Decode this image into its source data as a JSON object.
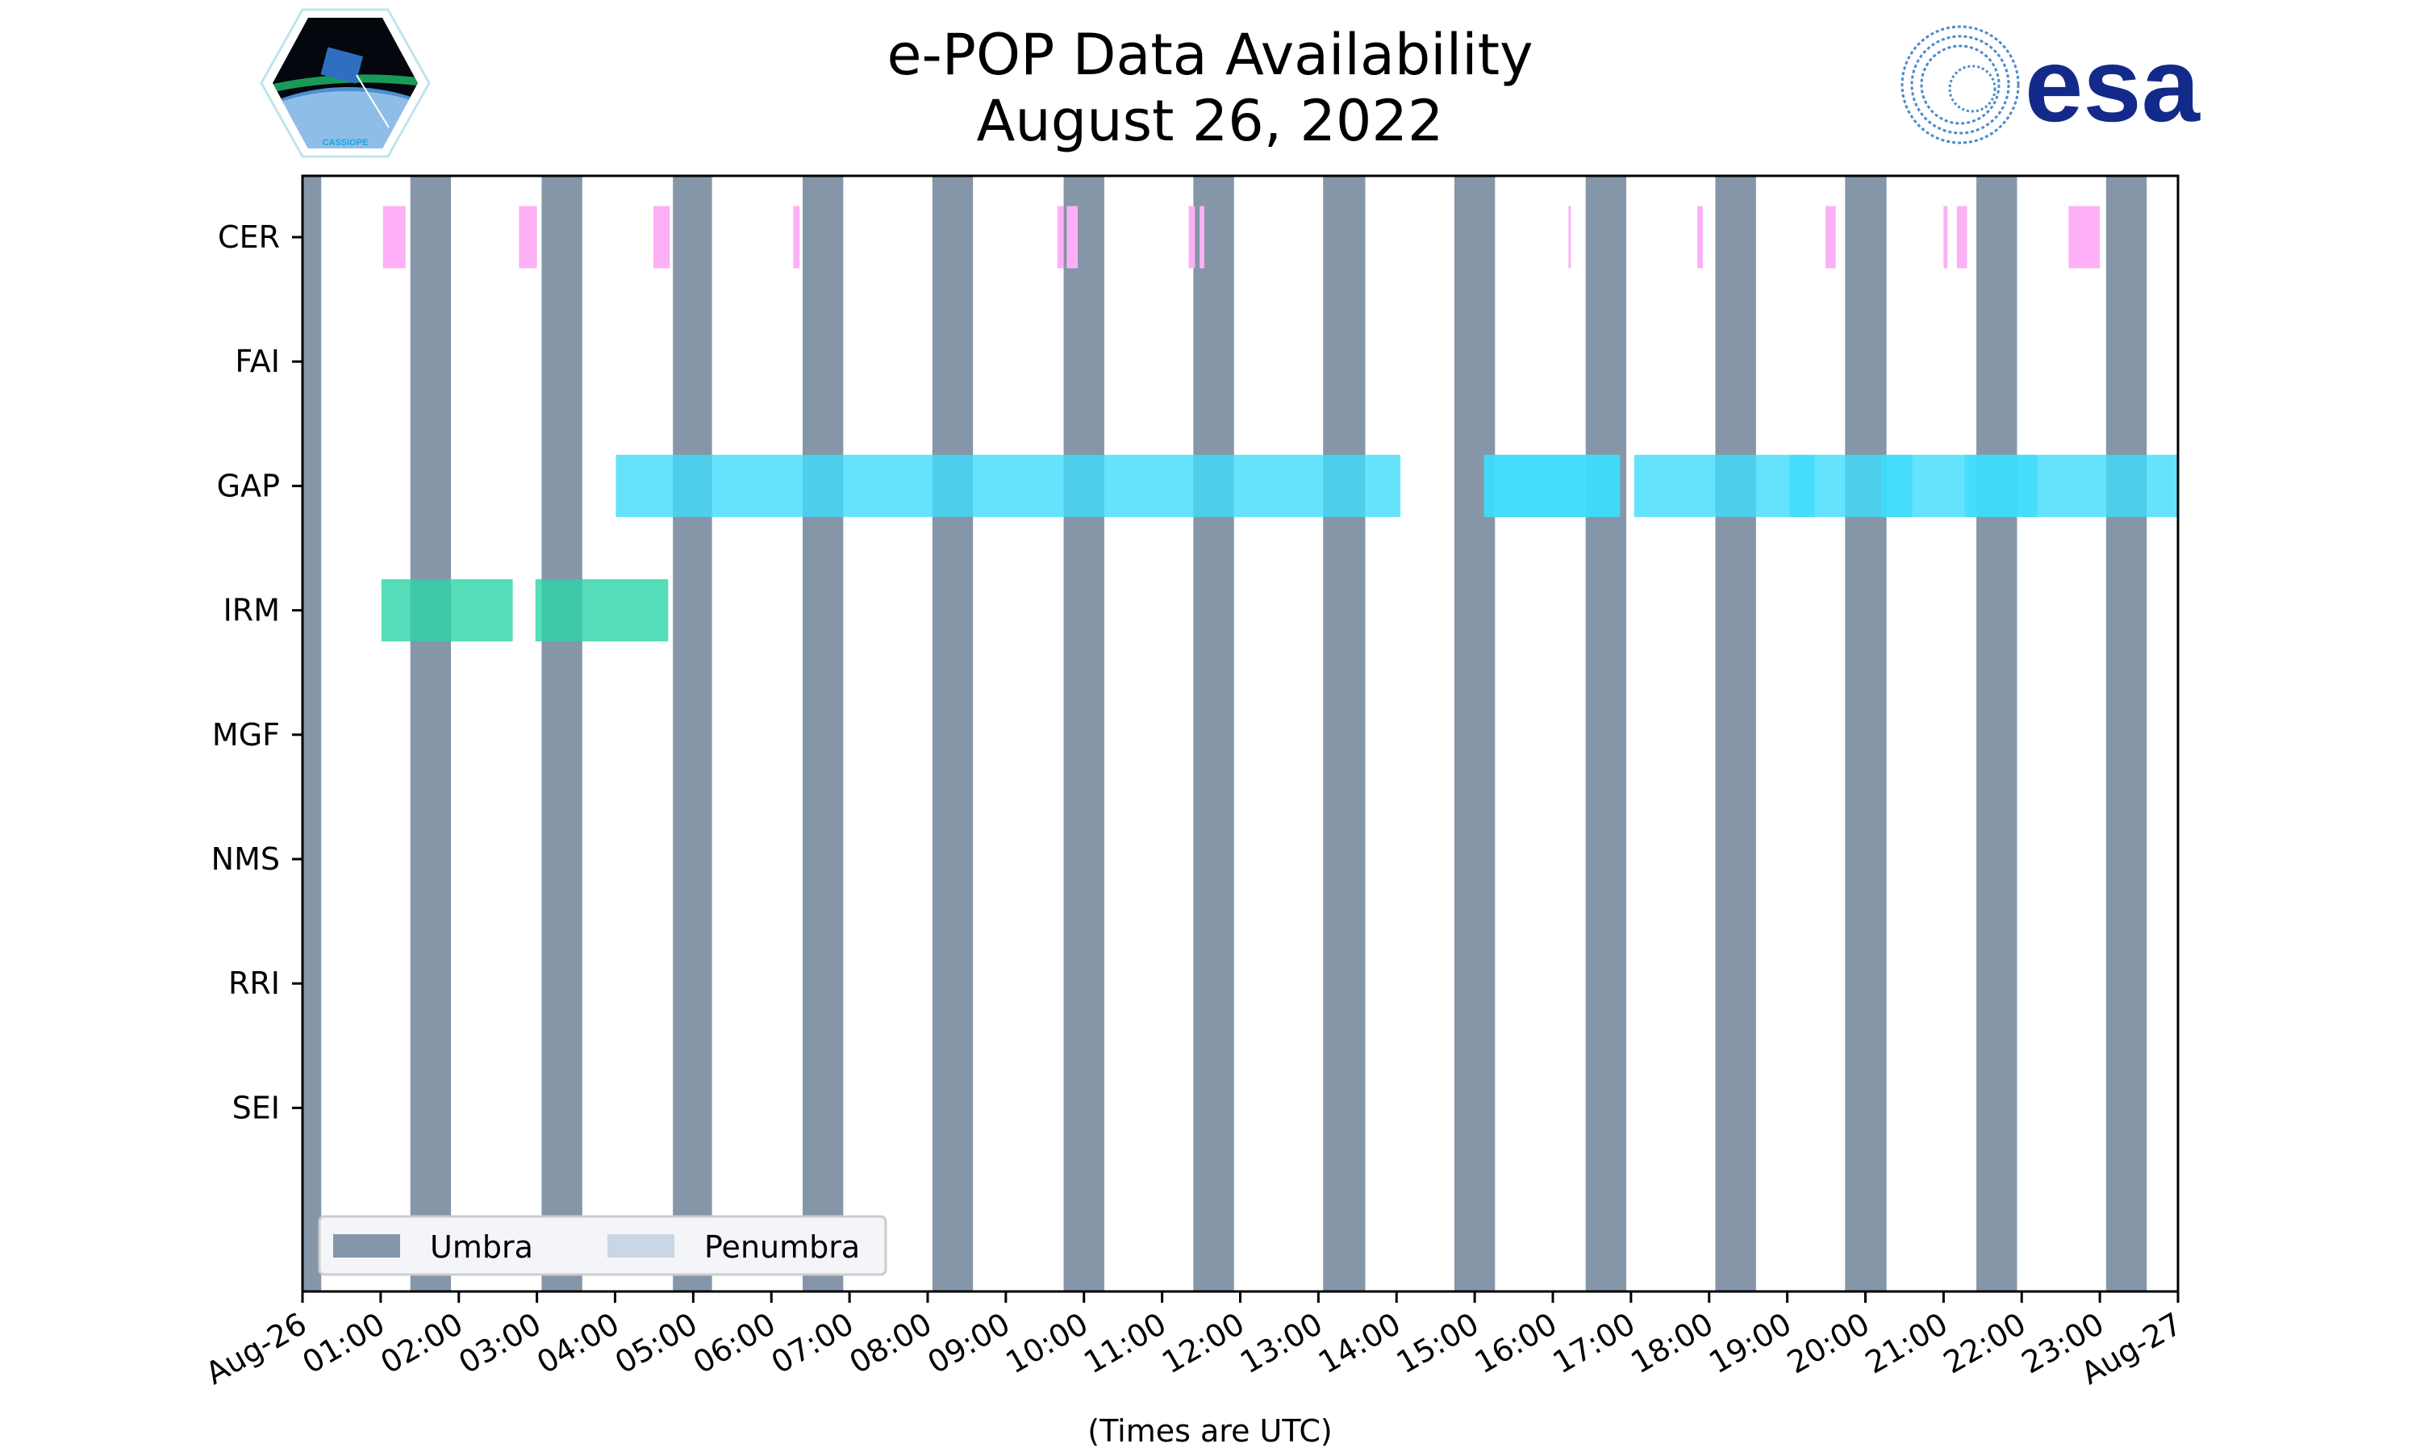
{
  "chart_data": {
    "type": "timeline",
    "title": "e-POP Data Availability",
    "subtitle": "August 26, 2022",
    "xlabel": "(Times are UTC)",
    "ylabel": "",
    "xlim_hours": [
      0,
      24
    ],
    "x_tick_labels": [
      "Aug-26",
      "01:00",
      "02:00",
      "03:00",
      "04:00",
      "05:00",
      "06:00",
      "07:00",
      "08:00",
      "09:00",
      "10:00",
      "11:00",
      "12:00",
      "13:00",
      "14:00",
      "15:00",
      "16:00",
      "17:00",
      "18:00",
      "19:00",
      "20:00",
      "21:00",
      "22:00",
      "23:00",
      "Aug-27"
    ],
    "categories": [
      "CER",
      "FAI",
      "GAP",
      "IRM",
      "MGF",
      "NMS",
      "RRI",
      "SEI"
    ],
    "grid": false,
    "legend": {
      "placement": "lower-left",
      "entries": [
        {
          "label": "Umbra",
          "color": "#8596a8"
        },
        {
          "label": "Penumbra",
          "color": "#c8d6e5"
        }
      ]
    },
    "umbra_hours": [
      [
        0,
        0.24
      ],
      [
        1.38,
        1.9
      ],
      [
        3.06,
        3.58
      ],
      [
        4.74,
        5.24
      ],
      [
        6.4,
        6.92
      ],
      [
        8.06,
        8.58
      ],
      [
        9.74,
        10.26
      ],
      [
        11.4,
        11.92
      ],
      [
        13.06,
        13.6
      ],
      [
        14.74,
        15.26
      ],
      [
        16.42,
        16.94
      ],
      [
        18.08,
        18.6
      ],
      [
        19.74,
        20.27
      ],
      [
        21.42,
        21.94
      ],
      [
        23.08,
        23.6
      ]
    ],
    "penumbra_hours": [],
    "series": [
      {
        "name": "CER",
        "color": "#fdb0f5",
        "intervals": [
          [
            1.03,
            1.32
          ],
          [
            2.77,
            3.0
          ],
          [
            4.49,
            4.7
          ],
          [
            6.28,
            6.36
          ],
          [
            9.66,
            9.74
          ],
          [
            9.78,
            9.92
          ],
          [
            11.34,
            11.42
          ],
          [
            11.48,
            11.54
          ],
          [
            16.2,
            16.23
          ],
          [
            17.85,
            17.92
          ],
          [
            19.49,
            19.62
          ],
          [
            21.0,
            21.05
          ],
          [
            21.17,
            21.3
          ],
          [
            22.6,
            23.0
          ]
        ]
      },
      {
        "name": "FAI",
        "color": "#fdb0f5",
        "intervals": []
      },
      {
        "name": "GAP",
        "color": "#3fdcfb",
        "intervals": [
          [
            4.01,
            14.05
          ],
          [
            15.12,
            16.86
          ],
          [
            15.12,
            16.86
          ],
          [
            17.04,
            24
          ],
          [
            19.03,
            19.35
          ],
          [
            20.2,
            20.6
          ],
          [
            21.27,
            22.2
          ]
        ]
      },
      {
        "name": "IRM",
        "color": "#2ad4a8",
        "intervals": [
          [
            1.01,
            2.69
          ],
          [
            2.98,
            4.68
          ]
        ]
      },
      {
        "name": "MGF",
        "color": "#2ad4a8",
        "intervals": []
      },
      {
        "name": "NMS",
        "color": "#2ad4a8",
        "intervals": []
      },
      {
        "name": "RRI",
        "color": "#2ad4a8",
        "intervals": []
      },
      {
        "name": "SEI",
        "color": "#2ad4a8",
        "intervals": []
      }
    ]
  },
  "logos": {
    "left": "CASSIOPE",
    "right": "esa"
  }
}
